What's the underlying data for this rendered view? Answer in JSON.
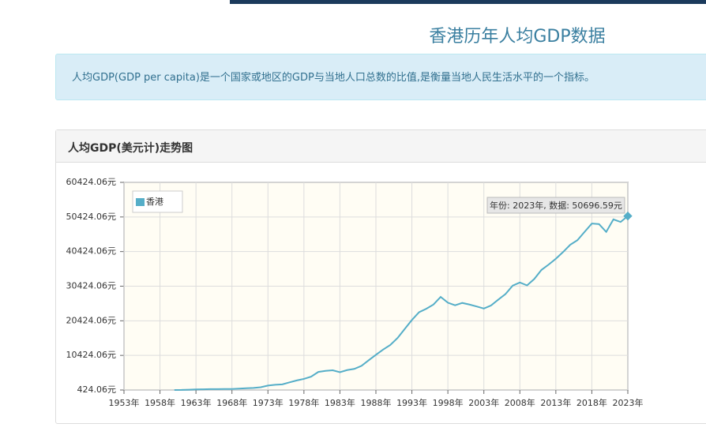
{
  "header": {
    "title": "香港历年人均GDP数据"
  },
  "info": {
    "text": "人均GDP(GDP per capita)是一个国家或地区的GDP与当地人口总数的比值,是衡量当地人民生活水平的一个指标。"
  },
  "panel": {
    "title": "人均GDP(美元计)走势图"
  },
  "chart_data": {
    "type": "line",
    "grid": true,
    "legend": "top-left",
    "annotation": "年份: 2023年, 数据: 50696.59元",
    "xlim": [
      1953,
      2023
    ],
    "ylim": [
      424.06,
      60424.06
    ],
    "xticks": [
      {
        "value": 1953,
        "label": "1953年"
      },
      {
        "value": 1958,
        "label": "1958年"
      },
      {
        "value": 1963,
        "label": "1963年"
      },
      {
        "value": 1968,
        "label": "1968年"
      },
      {
        "value": 1973,
        "label": "1973年"
      },
      {
        "value": 1978,
        "label": "1978年"
      },
      {
        "value": 1983,
        "label": "1983年"
      },
      {
        "value": 1988,
        "label": "1988年"
      },
      {
        "value": 1993,
        "label": "1993年"
      },
      {
        "value": 1998,
        "label": "1998年"
      },
      {
        "value": 2003,
        "label": "2003年"
      },
      {
        "value": 2008,
        "label": "2008年"
      },
      {
        "value": 2013,
        "label": "2013年"
      },
      {
        "value": 2018,
        "label": "2018年"
      },
      {
        "value": 2023,
        "label": "2023年"
      }
    ],
    "yticks": [
      {
        "value": 424.06,
        "label": "424.06元"
      },
      {
        "value": 10424.06,
        "label": "10424.06元"
      },
      {
        "value": 20424.06,
        "label": "20424.06元"
      },
      {
        "value": 30424.06,
        "label": "30424.06元"
      },
      {
        "value": 40424.06,
        "label": "40424.06元"
      },
      {
        "value": 50424.06,
        "label": "50424.06元"
      },
      {
        "value": 60424.06,
        "label": "60424.06元"
      }
    ],
    "x": [
      1960,
      1961,
      1962,
      1963,
      1964,
      1965,
      1966,
      1967,
      1968,
      1969,
      1970,
      1971,
      1972,
      1973,
      1974,
      1975,
      1976,
      1977,
      1978,
      1979,
      1980,
      1981,
      1982,
      1983,
      1984,
      1985,
      1986,
      1987,
      1988,
      1989,
      1990,
      1991,
      1992,
      1993,
      1994,
      1995,
      1996,
      1997,
      1998,
      1999,
      2000,
      2001,
      2002,
      2003,
      2004,
      2005,
      2006,
      2007,
      2008,
      2009,
      2010,
      2011,
      2012,
      2013,
      2014,
      2015,
      2016,
      2017,
      2018,
      2019,
      2020,
      2021,
      2022,
      2023
    ],
    "series": [
      {
        "name": "香港",
        "color": "#55aec8",
        "values": [
          429,
          445,
          517,
          582,
          629,
          678,
          692,
          710,
          709,
          826,
          925,
          1015,
          1223,
          1713,
          1938,
          2050,
          2632,
          3184,
          3633,
          4290,
          5645,
          5966,
          6123,
          5577,
          6187,
          6519,
          7406,
          9026,
          10589,
          12098,
          13446,
          15435,
          18035,
          20652,
          22900,
          23894,
          25136,
          27330,
          25655,
          24902,
          25583,
          25118,
          24558,
          23972,
          24855,
          26537,
          28143,
          30565,
          31479,
          30653,
          32503,
          35125,
          36665,
          38356,
          40287,
          42397,
          43710,
          46143,
          48521,
          48356,
          46109,
          49727,
          48984,
          50696.59
        ]
      }
    ]
  }
}
